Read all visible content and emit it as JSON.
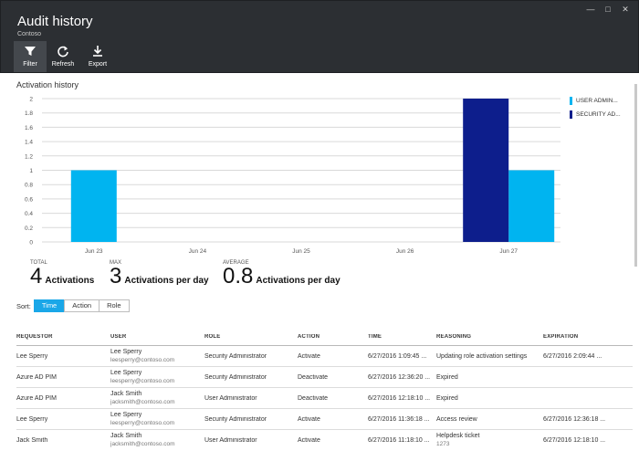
{
  "header": {
    "title": "Audit history",
    "subtitle": "Contoso",
    "toolbar": [
      {
        "label": "Filter",
        "icon": "filter-icon"
      },
      {
        "label": "Refresh",
        "icon": "refresh-icon"
      },
      {
        "label": "Export",
        "icon": "download-icon"
      }
    ]
  },
  "chart_section": {
    "title": "Activation history"
  },
  "chart_data": {
    "type": "bar",
    "categories": [
      "Jun 23",
      "Jun 24",
      "Jun 25",
      "Jun 26",
      "Jun 27"
    ],
    "series": [
      {
        "name": "USER ADMIN...",
        "color": "#00b4f0",
        "values": [
          1,
          0,
          0,
          0,
          1
        ]
      },
      {
        "name": "SECURITY AD...",
        "color": "#0d1e8c",
        "values": [
          0,
          0,
          0,
          0,
          2
        ]
      }
    ],
    "ylim": [
      0,
      2
    ],
    "yticks": [
      "0",
      "0.2",
      "0.4",
      "0.6",
      "0.8",
      "1",
      "1.2",
      "1.4",
      "1.6",
      "1.8",
      "2"
    ],
    "grid": true,
    "legend": "right"
  },
  "stats": [
    {
      "label": "TOTAL",
      "value": "4",
      "unit": "Activations"
    },
    {
      "label": "MAX",
      "value": "3",
      "unit": "Activations per day"
    },
    {
      "label": "AVERAGE",
      "value": "0.8",
      "unit": "Activations per day"
    }
  ],
  "sort": {
    "label": "Sort:",
    "options": [
      "Time",
      "Action",
      "Role"
    ],
    "selected": "Time"
  },
  "table": {
    "columns": [
      "REQUESTOR",
      "USER",
      "ROLE",
      "ACTION",
      "TIME",
      "REASONING",
      "EXPIRATION"
    ],
    "rows": [
      {
        "requestor": "Lee Sperry",
        "user": "Lee Sperry",
        "email": "leesperry@contoso.com",
        "role": "Security Administrator",
        "action": "Activate",
        "time": "6/27/2016 1:09:45 ...",
        "reasoning": "Updating role activation settings",
        "reasoning_sub": "",
        "expiration": "6/27/2016 2:09:44 ..."
      },
      {
        "requestor": "Azure AD PIM",
        "user": "Lee Sperry",
        "email": "leesperry@contoso.com",
        "role": "Security Administrator",
        "action": "Deactivate",
        "time": "6/27/2016 12:36:20 ...",
        "reasoning": "Expired",
        "reasoning_sub": "",
        "expiration": ""
      },
      {
        "requestor": "Azure AD PIM",
        "user": "Jack Smith",
        "email": "jacksmith@contoso.com",
        "role": "User Administrator",
        "action": "Deactivate",
        "time": "6/27/2016 12:18:10 ...",
        "reasoning": "Expired",
        "reasoning_sub": "",
        "expiration": ""
      },
      {
        "requestor": "Lee Sperry",
        "user": "Lee Sperry",
        "email": "leesperry@contoso.com",
        "role": "Security Administrator",
        "action": "Activate",
        "time": "6/27/2016 11:36:18 ...",
        "reasoning": "Access review",
        "reasoning_sub": "",
        "expiration": "6/27/2016 12:36:18 ..."
      },
      {
        "requestor": "Jack Smith",
        "user": "Jack Smith",
        "email": "jacksmith@contoso.com",
        "role": "User Administrator",
        "action": "Activate",
        "time": "6/27/2016 11:18:10 ...",
        "reasoning": "Helpdesk ticket",
        "reasoning_sub": "1273",
        "expiration": "6/27/2016 12:18:10 ..."
      }
    ]
  }
}
